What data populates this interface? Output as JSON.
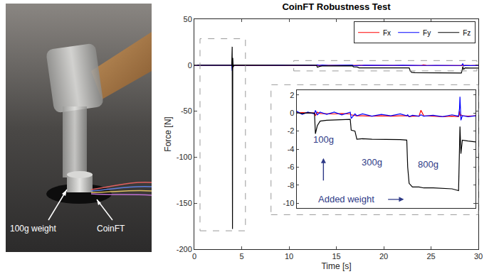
{
  "photo": {
    "labels": [
      "100g weight",
      "CoinFT"
    ]
  },
  "chart_data": {
    "type": "line",
    "title": "CoinFT Robustness Test",
    "x_label": "Time [s]",
    "y_label": "Force [N]",
    "x": [
      0,
      1,
      2,
      3,
      3.95,
      4.0,
      4.03,
      4.06,
      4.1,
      4.2,
      5,
      6,
      7,
      8,
      9,
      10,
      11,
      11.6,
      12.2,
      12.9,
      13.0,
      13.2,
      13.5,
      14.2,
      15,
      15.8,
      16.7,
      16.8,
      17.2,
      17.4,
      18,
      19,
      20,
      21,
      22,
      22.7,
      22.8,
      22.95,
      23.3,
      24,
      24.2,
      24.5,
      25.5,
      26.5,
      27.5,
      28.2,
      28.3,
      28.35,
      28.45,
      28.6,
      29.2,
      30
    ],
    "series": [
      {
        "name": "Fx",
        "color": "#ff0000",
        "values": [
          0,
          0.05,
          -0.05,
          0,
          0,
          3,
          -4,
          1,
          0,
          0,
          0.05,
          0,
          -0.05,
          0.05,
          0,
          -0.05,
          0,
          0.05,
          0,
          0,
          -0.3,
          0.1,
          -0.05,
          -0.1,
          -0.1,
          -0.05,
          -0.1,
          -0.2,
          -0.25,
          -0.3,
          -0.3,
          -0.35,
          -0.3,
          -0.35,
          -0.3,
          -0.35,
          -0.3,
          -0.4,
          -0.35,
          -0.35,
          0.3,
          -0.3,
          -0.35,
          -0.4,
          -0.35,
          -0.4,
          0.2,
          -0.3,
          -0.2,
          -0.3,
          -0.35,
          -0.3
        ]
      },
      {
        "name": "Fy",
        "color": "#0000ff",
        "values": [
          0,
          -0.15,
          0.15,
          -0.1,
          0,
          -6,
          5,
          -2,
          0.2,
          -0.1,
          0.15,
          -0.15,
          0.1,
          -0.2,
          0.15,
          -0.1,
          0.2,
          -0.15,
          0.1,
          -0.1,
          0.3,
          -0.2,
          0.1,
          -0.15,
          0.1,
          -0.2,
          0.1,
          -0.6,
          -0.1,
          -0.3,
          -0.1,
          -0.35,
          -0.15,
          -0.3,
          -0.1,
          -0.3,
          -0.2,
          -0.4,
          -0.25,
          -0.35,
          -0.2,
          -0.35,
          -0.25,
          -0.4,
          -0.2,
          -0.35,
          0.5,
          1.8,
          -0.8,
          -0.3,
          -0.4,
          -0.3
        ]
      },
      {
        "name": "Fz",
        "color": "#000000",
        "values": [
          0,
          0.1,
          -0.1,
          0.05,
          0,
          20,
          -178,
          8,
          -2,
          0.1,
          0,
          -0.05,
          0.05,
          0,
          -0.05,
          0,
          0.02,
          -0.05,
          0.03,
          0,
          -2.3,
          -1.4,
          -0.9,
          -0.8,
          -0.75,
          -0.72,
          -0.7,
          -1.9,
          -2.0,
          -2.9,
          -2.85,
          -2.9,
          -2.9,
          -2.95,
          -2.95,
          -3.0,
          -6.0,
          -7.8,
          -8.2,
          -8.2,
          -8.25,
          -8.3,
          -8.3,
          -8.35,
          -8.4,
          -8.6,
          -5.0,
          -1.5,
          -4.5,
          -3.0,
          -3.1,
          -3.2
        ]
      }
    ],
    "xlim": [
      0,
      30
    ],
    "xticks": [
      0,
      5,
      10,
      15,
      20,
      25,
      30
    ],
    "ylim": [
      -200,
      50
    ],
    "yticks": [
      -200,
      -150,
      -100,
      -50,
      0,
      50
    ],
    "legend": "upper right",
    "grid": false,
    "inset": {
      "xlim": [
        11,
        30
      ],
      "ylim": [
        -10.5,
        2.5
      ],
      "yticks": [
        2,
        0,
        -2,
        -4,
        -6,
        -8,
        -10
      ],
      "tick_labels": "y",
      "annotations": [
        {
          "text": "100g",
          "color": "#2e3a87"
        },
        {
          "text": "300g",
          "color": "#2e3a87"
        },
        {
          "text": "800g",
          "color": "#2e3a87"
        },
        {
          "text": "Added weight",
          "color": "#2e3a87"
        }
      ]
    }
  }
}
